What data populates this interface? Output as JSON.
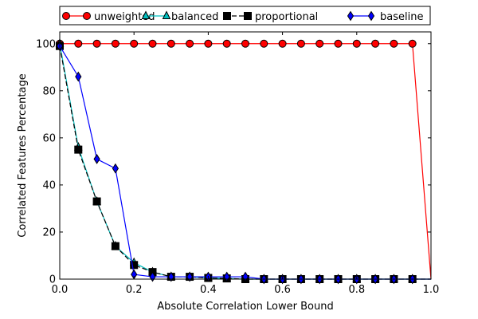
{
  "chart_data": {
    "type": "line",
    "title": "",
    "xlabel": "Absolute Correlation Lower Bound",
    "ylabel": "Correlated Features Percentage",
    "xlim": [
      0.0,
      1.0
    ],
    "ylim": [
      0,
      105
    ],
    "xticks": [
      0.0,
      0.2,
      0.4,
      0.6,
      0.8,
      1.0
    ],
    "xtick_labels": [
      "0.0",
      "0.2",
      "0.4",
      "0.6",
      "0.8",
      "1.0"
    ],
    "yticks": [
      0,
      20,
      40,
      60,
      80,
      100
    ],
    "ytick_labels": [
      "0",
      "20",
      "40",
      "60",
      "80",
      "100"
    ],
    "grid": false,
    "legend_placement": "top, outside plot area",
    "x": [
      0.0,
      0.05,
      0.1,
      0.15,
      0.2,
      0.25,
      0.3,
      0.35,
      0.4,
      0.45,
      0.5,
      0.55,
      0.6,
      0.65,
      0.7,
      0.75,
      0.8,
      0.85,
      0.9,
      0.95,
      1.0
    ],
    "series": [
      {
        "name": "unweighted",
        "color": "#ff0000",
        "line_color": "#ff0000",
        "marker": "circle",
        "line_style": "solid",
        "values": [
          100,
          100,
          100,
          100,
          100,
          100,
          100,
          100,
          100,
          100,
          100,
          100,
          100,
          100,
          100,
          100,
          100,
          100,
          100,
          100,
          0
        ],
        "marker_count": 20
      },
      {
        "name": "balanced",
        "color": "#00bfbf",
        "line_color": "#00bfbf",
        "marker": "triangle",
        "line_style": "solid",
        "values": [
          100,
          56,
          33,
          14,
          7,
          3,
          1,
          1,
          0.5,
          0.3,
          0,
          0,
          0,
          0,
          0,
          0,
          0,
          0,
          0,
          0,
          0
        ],
        "marker_count": 20
      },
      {
        "name": "proportional",
        "color": "#000000",
        "line_color": "#000000",
        "marker": "square",
        "line_style": "dashed",
        "values": [
          99,
          55,
          33,
          14,
          6,
          3,
          1,
          1,
          0.5,
          0.3,
          0,
          0,
          0,
          0,
          0,
          0,
          0,
          0,
          0,
          0,
          0
        ],
        "marker_count": 20
      },
      {
        "name": "baseline",
        "color": "#0000ff",
        "line_color": "#0000ff",
        "marker": "diamond",
        "line_style": "solid",
        "values": [
          99,
          86,
          51,
          47,
          2,
          1,
          1,
          1,
          1,
          1,
          1,
          0,
          0,
          0,
          0,
          0,
          0,
          0,
          0,
          0,
          0
        ],
        "marker_count": 20
      }
    ]
  }
}
